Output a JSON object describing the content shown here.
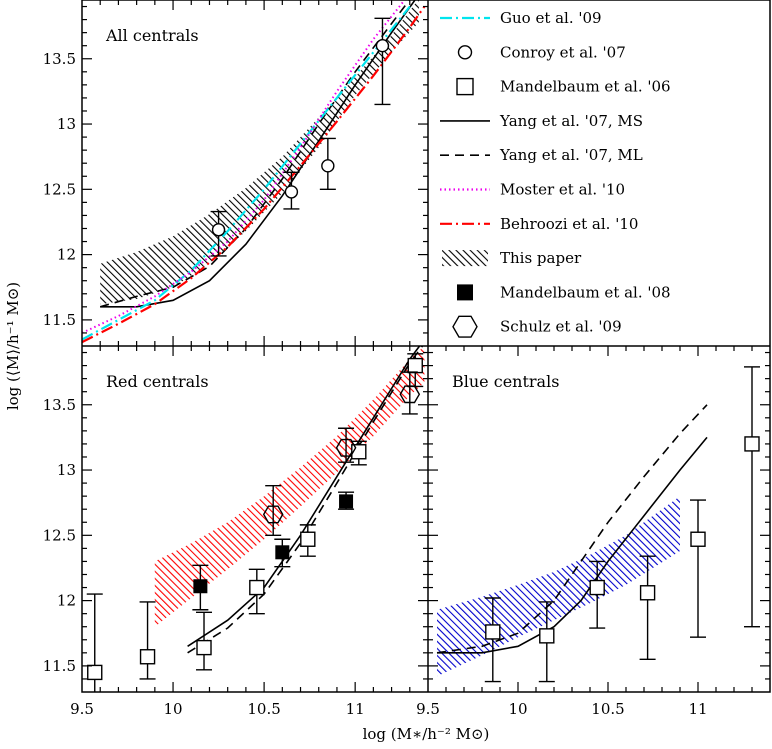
{
  "chart_data": {
    "type": "line",
    "xlabel": "log (M∗/h⁻² M⊙)",
    "ylabel": "log (⟨M⟩/h⁻¹ M⊙)",
    "xlim": [
      9.5,
      11.4
    ],
    "ylim": [
      11.3,
      13.95
    ],
    "legend": {
      "placement": "top-right panel",
      "entries": [
        {
          "key": "guo",
          "label": "Guo et al. '09",
          "style": "dash-dot",
          "color": "#00e5ee"
        },
        {
          "key": "conroy",
          "label": "Conroy et al. '07",
          "style": "open-circle",
          "color": "#000000"
        },
        {
          "key": "mandelbaum06",
          "label": "Mandelbaum et al. '06",
          "style": "open-square",
          "color": "#000000"
        },
        {
          "key": "yang_ms",
          "label": "Yang et al. '07, MS",
          "style": "solid",
          "color": "#000000"
        },
        {
          "key": "yang_ml",
          "label": "Yang et al. '07, ML",
          "style": "dashed",
          "color": "#000000"
        },
        {
          "key": "moster",
          "label": "Moster et al. '10",
          "style": "dotted",
          "color": "#ee00ee"
        },
        {
          "key": "behroozi",
          "label": "Behroozi et al. '10",
          "style": "dash-dot",
          "color": "#ff0000"
        },
        {
          "key": "thispaper",
          "label": "This paper",
          "style": "hatched-band",
          "color": "#000000"
        },
        {
          "key": "mandelbaum08",
          "label": "Mandelbaum et al. '08",
          "style": "filled-square",
          "color": "#000000"
        },
        {
          "key": "schulz",
          "label": "Schulz et al. '09",
          "style": "open-hexagon",
          "color": "#000000"
        }
      ]
    },
    "panels": [
      {
        "id": "all",
        "title": "All centrals",
        "x_ticks": [],
        "y_ticks": [
          "11.5",
          "12",
          "12.5",
          "13",
          "13.5"
        ],
        "band": {
          "color": "#000000",
          "x": [
            9.6,
            9.8,
            10.0,
            10.2,
            10.4,
            10.6,
            10.8,
            11.0,
            11.2,
            11.35
          ],
          "low": [
            11.62,
            11.66,
            11.75,
            11.93,
            12.18,
            12.47,
            12.82,
            13.22,
            13.55,
            13.78
          ],
          "high": [
            11.93,
            12.02,
            12.14,
            12.31,
            12.51,
            12.75,
            13.05,
            13.36,
            13.68,
            13.96
          ]
        },
        "lines": [
          {
            "key": "yang_ms",
            "x": [
              9.6,
              9.8,
              10.0,
              10.2,
              10.4,
              10.6,
              10.8,
              11.0,
              11.2,
              11.38
            ],
            "y": [
              11.6,
              11.6,
              11.65,
              11.8,
              12.08,
              12.45,
              12.87,
              13.3,
              13.7,
              14.05
            ]
          },
          {
            "key": "yang_ml",
            "x": [
              9.6,
              9.8,
              10.0,
              10.2,
              10.4,
              10.6,
              10.8,
              11.0,
              11.2,
              11.38
            ],
            "y": [
              11.6,
              11.68,
              11.75,
              11.91,
              12.2,
              12.58,
              13.0,
              13.4,
              13.77,
              14.1
            ]
          },
          {
            "key": "guo",
            "x": [
              9.5,
              9.7,
              9.9,
              10.1,
              10.3,
              10.5,
              10.7,
              10.9,
              11.1,
              11.3
            ],
            "y": [
              11.35,
              11.5,
              11.65,
              11.88,
              12.18,
              12.5,
              12.85,
              13.2,
              13.55,
              13.9
            ]
          },
          {
            "key": "moster",
            "x": [
              9.5,
              9.7,
              9.9,
              10.1,
              10.3,
              10.5,
              10.7,
              10.9,
              11.1,
              11.3
            ],
            "y": [
              11.4,
              11.53,
              11.68,
              11.87,
              12.1,
              12.42,
              12.82,
              13.25,
              13.65,
              14.0
            ]
          },
          {
            "key": "behroozi",
            "x": [
              9.5,
              9.7,
              9.9,
              10.1,
              10.3,
              10.5,
              10.7,
              10.9,
              11.1,
              11.3,
              11.38
            ],
            "y": [
              11.33,
              11.47,
              11.62,
              11.82,
              12.06,
              12.35,
              12.68,
              13.02,
              13.37,
              13.74,
              13.9
            ]
          }
        ],
        "markers": [
          {
            "key": "conroy",
            "x": [
              10.25,
              10.65,
              10.85,
              11.15
            ],
            "y": [
              12.19,
              12.48,
              12.68,
              13.6
            ],
            "yerr_low": [
              0.2,
              0.13,
              0.18,
              0.45
            ],
            "yerr_high": [
              0.14,
              0.15,
              0.21,
              0.21
            ]
          }
        ]
      },
      {
        "id": "red",
        "title": "Red centrals",
        "x_ticks": [
          "9.5",
          "10",
          "10.5",
          "11"
        ],
        "y_ticks": [
          "11.5",
          "12",
          "12.5",
          "13",
          "13.5"
        ],
        "band": {
          "color": "#ff0000",
          "x": [
            9.9,
            10.1,
            10.3,
            10.5,
            10.7,
            10.9,
            11.1,
            11.3,
            11.38
          ],
          "low": [
            11.8,
            12.02,
            12.24,
            12.47,
            12.72,
            12.98,
            13.26,
            13.57,
            13.67
          ],
          "high": [
            12.3,
            12.44,
            12.6,
            12.8,
            13.02,
            13.26,
            13.54,
            13.85,
            13.95
          ]
        },
        "lines": [
          {
            "key": "yang_ms",
            "x": [
              10.08,
              10.3,
              10.5,
              10.7,
              10.9,
              11.1,
              11.3,
              11.38
            ],
            "y": [
              11.65,
              11.85,
              12.1,
              12.5,
              12.95,
              13.4,
              13.85,
              14.0
            ]
          },
          {
            "key": "yang_ml",
            "x": [
              10.08,
              10.3,
              10.5,
              10.7,
              10.9,
              11.1,
              11.3,
              11.38
            ],
            "y": [
              11.6,
              11.79,
              12.05,
              12.44,
              12.9,
              13.37,
              13.82,
              13.97
            ]
          }
        ],
        "markers": [
          {
            "key": "mandelbaum06",
            "x": [
              9.57,
              9.86,
              10.17,
              10.46,
              10.74,
              11.02,
              11.33
            ],
            "y": [
              11.45,
              11.57,
              11.64,
              12.1,
              12.47,
              13.14,
              13.8
            ],
            "yerr_low": [
              0.17,
              0.17,
              0.17,
              0.2,
              0.13,
              0.1,
              0.16
            ],
            "yerr_high": [
              0.6,
              0.42,
              0.27,
              0.14,
              0.11,
              0.08,
              0.09
            ]
          },
          {
            "key": "mandelbaum08",
            "x": [
              10.15,
              10.6,
              10.95
            ],
            "y": [
              12.11,
              12.37,
              12.76
            ],
            "yerr_low": [
              0.18,
              0.11,
              0.06
            ],
            "yerr_high": [
              0.16,
              0.1,
              0.07
            ]
          },
          {
            "key": "schulz",
            "x": [
              10.55,
              10.95,
              11.3
            ],
            "y": [
              12.66,
              13.17,
              13.58
            ],
            "yerr_low": [
              0.16,
              0.11,
              0.15
            ],
            "yerr_high": [
              0.22,
              0.15,
              0.17
            ]
          }
        ]
      },
      {
        "id": "blue",
        "title": "Blue centrals",
        "x_ticks": [
          "9.5",
          "10",
          "10.5",
          "11"
        ],
        "y_ticks": [],
        "band": {
          "color": "#0000cc",
          "x": [
            9.55,
            9.8,
            10.0,
            10.2,
            10.4,
            10.6,
            10.9
          ],
          "low": [
            11.42,
            11.58,
            11.72,
            11.85,
            11.98,
            12.12,
            12.38
          ],
          "high": [
            11.93,
            12.03,
            12.12,
            12.22,
            12.35,
            12.5,
            12.8
          ]
        },
        "lines": [
          {
            "key": "yang_ms",
            "x": [
              9.55,
              9.8,
              10.0,
              10.2,
              10.35,
              10.5,
              10.7,
              10.9,
              11.05
            ],
            "y": [
              11.6,
              11.6,
              11.65,
              11.8,
              12.0,
              12.3,
              12.65,
              13.0,
              13.25
            ]
          },
          {
            "key": "yang_ml",
            "x": [
              9.55,
              9.8,
              10.0,
              10.2,
              10.35,
              10.5,
              10.7,
              10.9,
              11.05
            ],
            "y": [
              11.6,
              11.65,
              11.75,
              12.0,
              12.3,
              12.6,
              12.95,
              13.28,
              13.5
            ]
          }
        ],
        "markers": [
          {
            "key": "mandelbaum06",
            "x": [
              9.86,
              10.16,
              10.44,
              10.72,
              11.0,
              11.3
            ],
            "y": [
              11.76,
              11.73,
              12.1,
              12.06,
              12.47,
              13.2
            ],
            "yerr_low": [
              0.38,
              0.35,
              0.31,
              0.51,
              0.75,
              1.4
            ],
            "yerr_high": [
              0.26,
              0.26,
              0.2,
              0.28,
              0.3,
              0.59
            ]
          }
        ]
      }
    ]
  }
}
